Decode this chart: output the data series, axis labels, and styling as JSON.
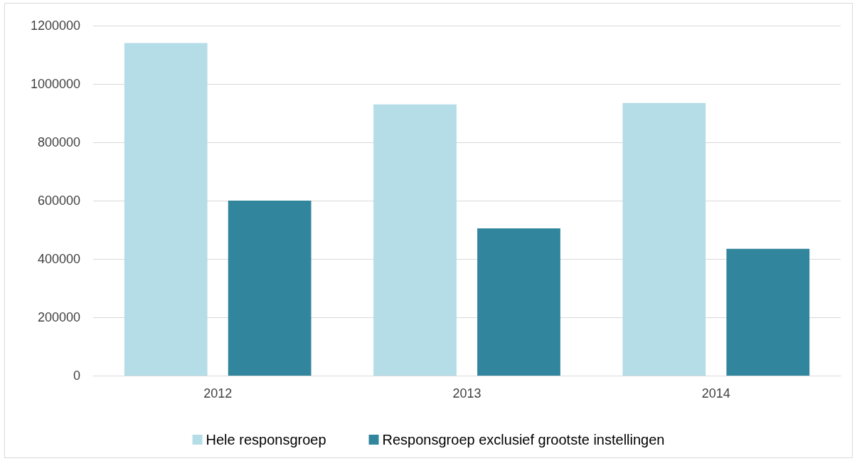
{
  "chart_data": {
    "type": "bar",
    "categories": [
      "2012",
      "2013",
      "2014"
    ],
    "series": [
      {
        "name": "Hele responsgroep",
        "color": "#b4dde7",
        "values": [
          1140000,
          930000,
          935000
        ]
      },
      {
        "name": "Responsgroep exclusief grootste instellingen",
        "color": "#31859c",
        "values": [
          600000,
          505000,
          435000
        ]
      }
    ],
    "ylim": [
      0,
      1200000
    ],
    "yticks": [
      0,
      200000,
      400000,
      600000,
      800000,
      1000000,
      1200000
    ],
    "grid": "y",
    "legend": "bottom"
  }
}
